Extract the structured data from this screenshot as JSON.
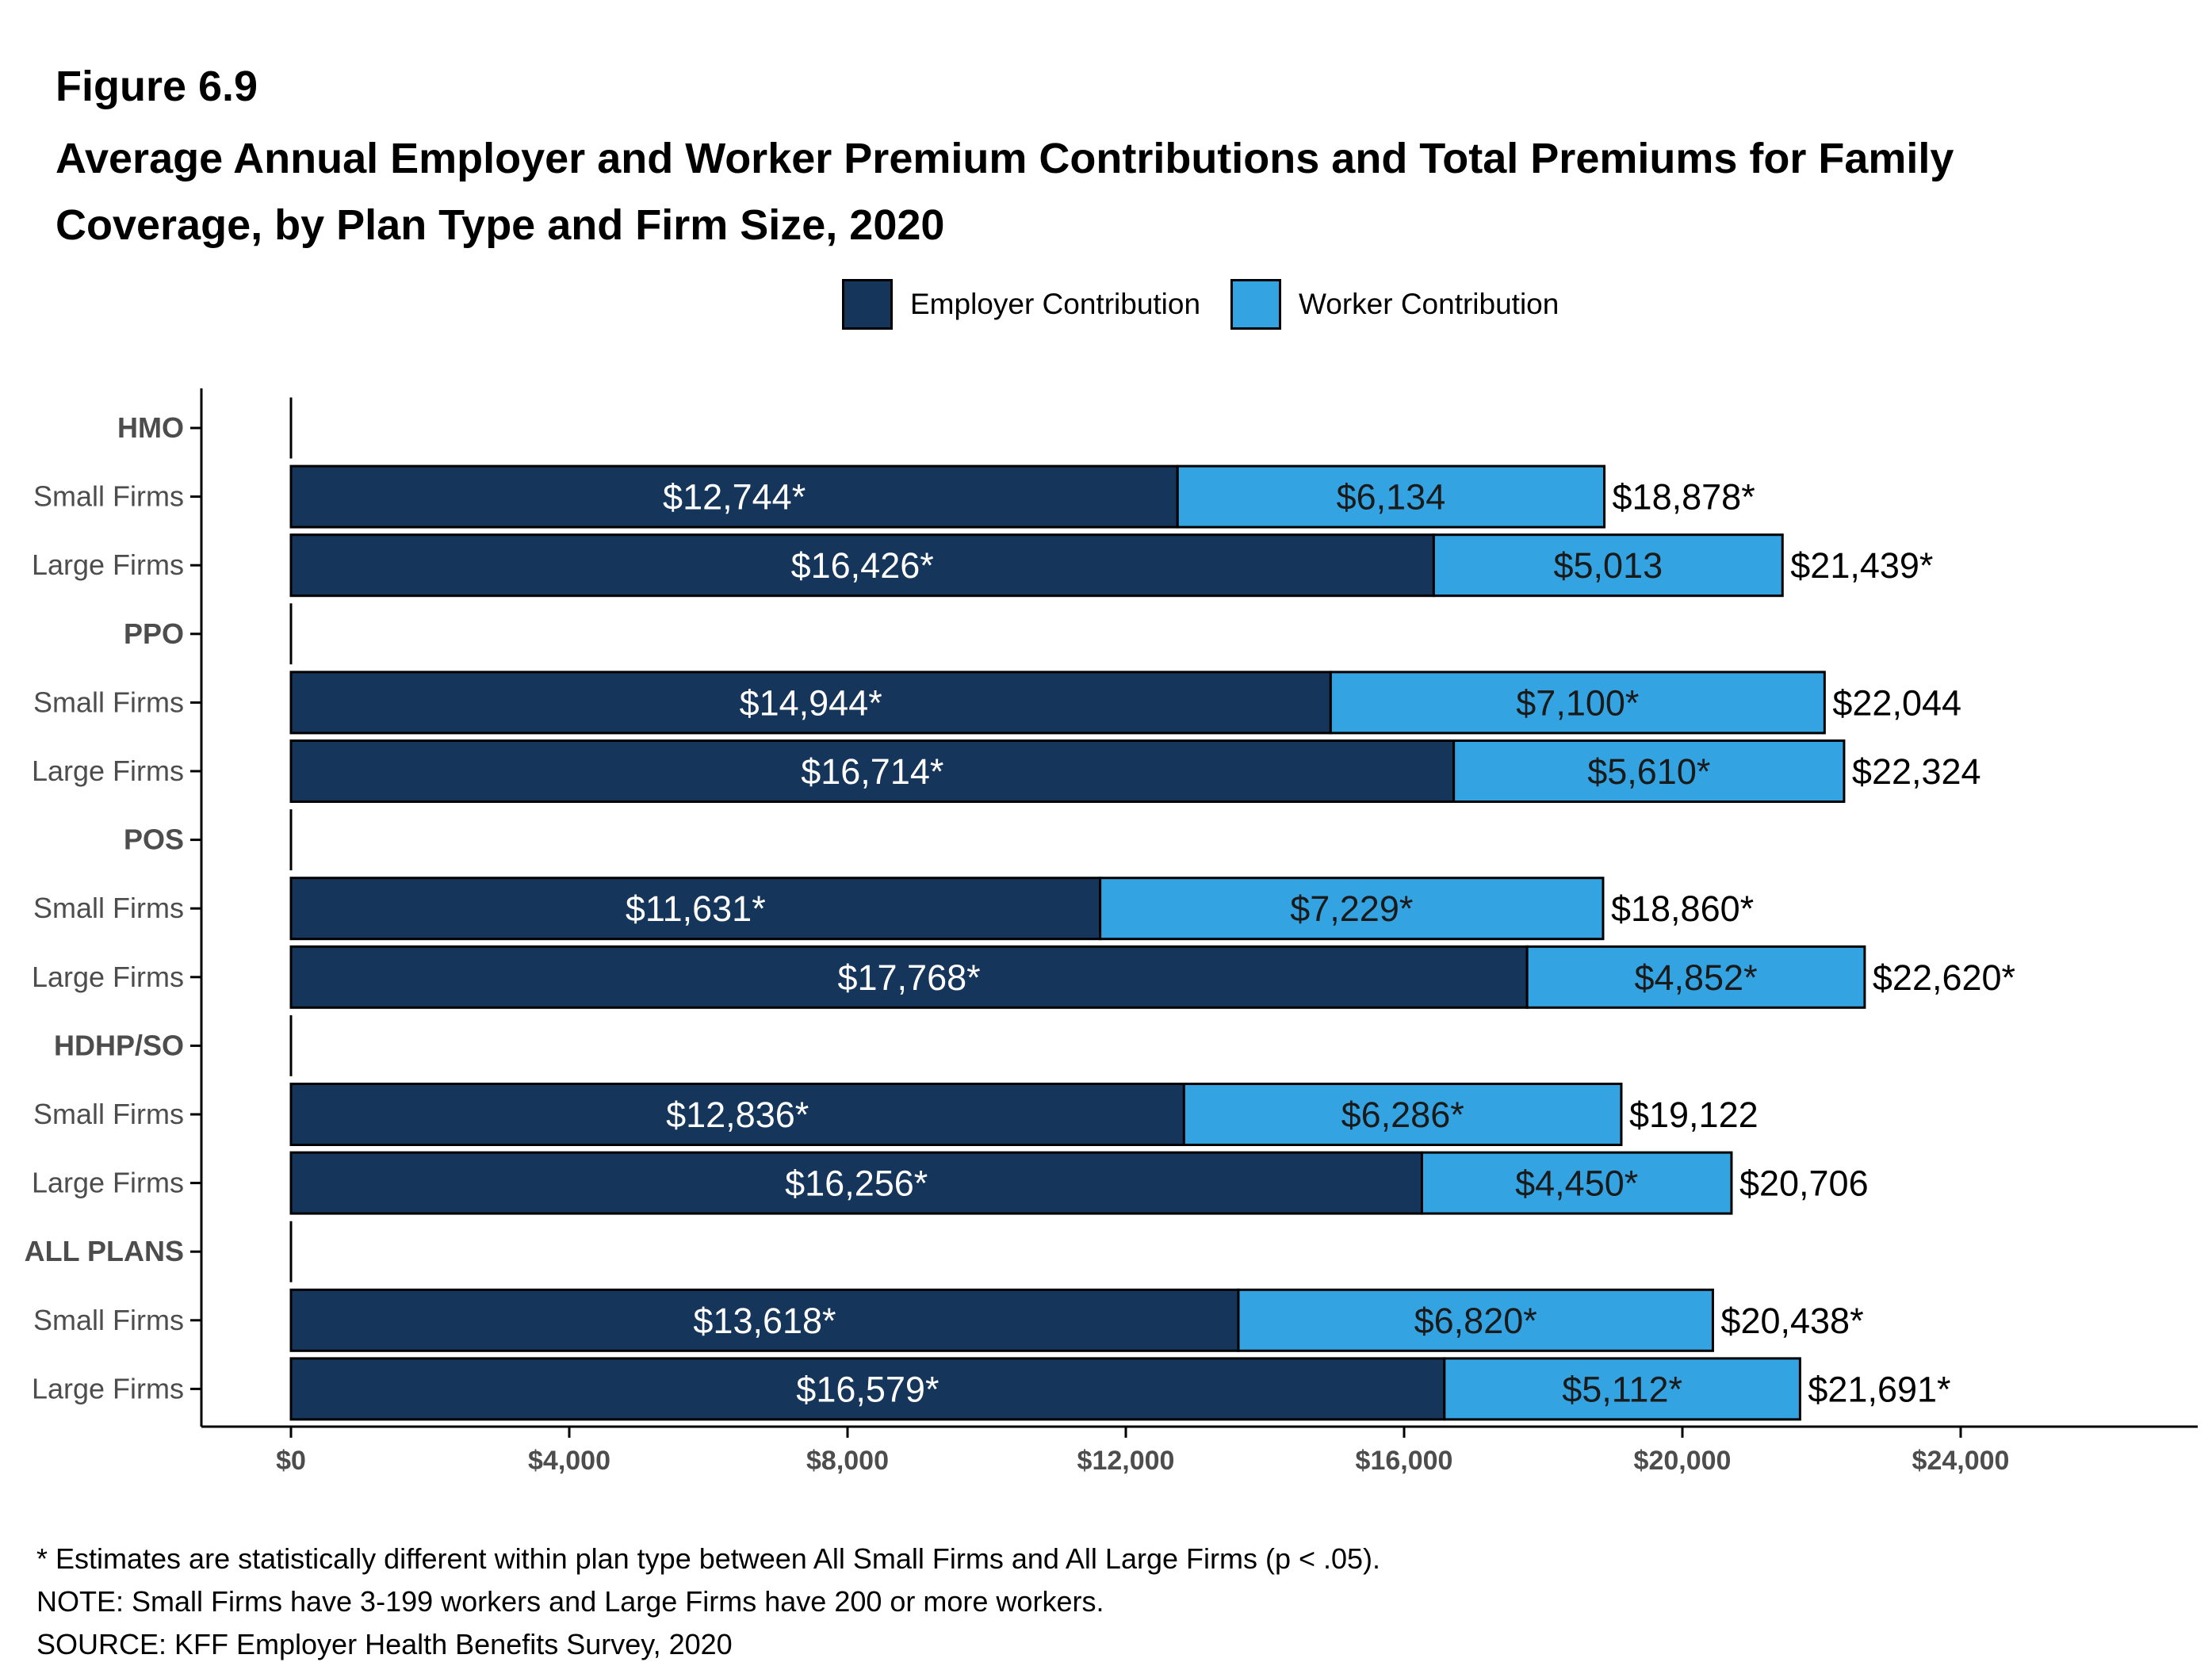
{
  "figure": {
    "label": "Figure 6.9",
    "title": "Average Annual Employer and Worker Premium Contributions and Total Premiums for Family Coverage, by Plan Type and Firm Size, 2020"
  },
  "legend": [
    {
      "label": "Employer Contribution",
      "color": "#16355b"
    },
    {
      "label": "Worker Contribution",
      "color": "#33a3e1"
    }
  ],
  "notes": [
    "* Estimates are statistically different within plan type between All Small Firms and All Large Firms (p < .05).",
    "NOTE: Small Firms have 3-199 workers and Large Firms have 200 or more workers.",
    "SOURCE: KFF Employer Health Benefits Survey, 2020"
  ],
  "chart_data": {
    "type": "bar",
    "orientation": "horizontal",
    "stacked": true,
    "title": "Average Annual Employer and Worker Premium Contributions and Total Premiums for Family Coverage, by Plan Type and Firm Size, 2020",
    "legend_position": "top",
    "grid": false,
    "xlim": [
      0,
      27000
    ],
    "x_ticks": [
      0,
      4000,
      8000,
      12000,
      16000,
      20000,
      24000
    ],
    "x_tick_labels": [
      "$0",
      "$4,000",
      "$8,000",
      "$12,000",
      "$16,000",
      "$20,000",
      "$24,000"
    ],
    "series_colors": [
      "#16355b",
      "#33a3e1"
    ],
    "rows": [
      {
        "label": "HMO",
        "header": true
      },
      {
        "label": "Small Firms",
        "employer": 12744,
        "worker": 6134,
        "employer_label": "$12,744*",
        "worker_label": "$6,134",
        "total_label": "$18,878*"
      },
      {
        "label": "Large Firms",
        "employer": 16426,
        "worker": 5013,
        "employer_label": "$16,426*",
        "worker_label": "$5,013",
        "total_label": "$21,439*"
      },
      {
        "label": "PPO",
        "header": true
      },
      {
        "label": "Small Firms",
        "employer": 14944,
        "worker": 7100,
        "employer_label": "$14,944*",
        "worker_label": "$7,100*",
        "total_label": "$22,044"
      },
      {
        "label": "Large Firms",
        "employer": 16714,
        "worker": 5610,
        "employer_label": "$16,714*",
        "worker_label": "$5,610*",
        "total_label": "$22,324"
      },
      {
        "label": "POS",
        "header": true
      },
      {
        "label": "Small Firms",
        "employer": 11631,
        "worker": 7229,
        "employer_label": "$11,631*",
        "worker_label": "$7,229*",
        "total_label": "$18,860*"
      },
      {
        "label": "Large Firms",
        "employer": 17768,
        "worker": 4852,
        "employer_label": "$17,768*",
        "worker_label": "$4,852*",
        "total_label": "$22,620*"
      },
      {
        "label": "HDHP/SO",
        "header": true
      },
      {
        "label": "Small Firms",
        "employer": 12836,
        "worker": 6286,
        "employer_label": "$12,836*",
        "worker_label": "$6,286*",
        "total_label": "$19,122"
      },
      {
        "label": "Large Firms",
        "employer": 16256,
        "worker": 4450,
        "employer_label": "$16,256*",
        "worker_label": "$4,450*",
        "total_label": "$20,706"
      },
      {
        "label": "ALL PLANS",
        "header": true
      },
      {
        "label": "Small Firms",
        "employer": 13618,
        "worker": 6820,
        "employer_label": "$13,618*",
        "worker_label": "$6,820*",
        "total_label": "$20,438*"
      },
      {
        "label": "Large Firms",
        "employer": 16579,
        "worker": 5112,
        "employer_label": "$16,579*",
        "worker_label": "$5,112*",
        "total_label": "$21,691*"
      }
    ]
  }
}
